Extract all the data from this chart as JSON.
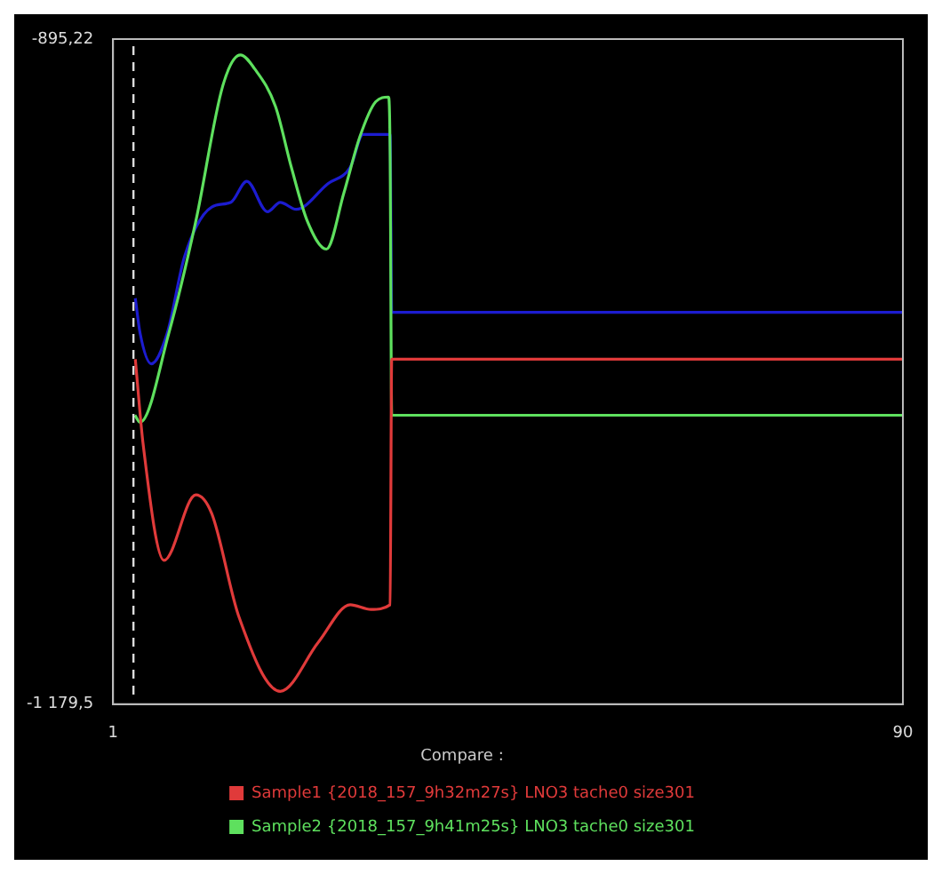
{
  "chart_data": {
    "type": "line",
    "legend_title": "Compare :",
    "legend": "bottom",
    "grid": false,
    "marker": "none",
    "line_style": "solid",
    "xlim": [
      1,
      90
    ],
    "xticks": [
      1,
      90
    ],
    "ylim": [
      -1179.5,
      -895.22
    ],
    "yticks": [
      {
        "value": -895.22,
        "label": "-895,22"
      },
      {
        "value": -1179.5,
        "label": "-1 179,5"
      }
    ],
    "ref_lines": [
      {
        "axis": "x",
        "value": 3.3,
        "color": "#dddddd",
        "line_style": "dashed"
      }
    ],
    "series": [
      {
        "name": "Sample1 {2018_157_9h32m27s} LNO3 tache0 size301",
        "color": "#e03a3a",
        "x": [
          3.51,
          4.41,
          6.74,
          10.33,
          12.12,
          15.17,
          19.84,
          24.14,
          27.73,
          30.06,
          32.22,
          32.4,
          90
        ],
        "values": [
          -1032,
          -1069,
          -1118,
          -1090,
          -1098,
          -1142,
          -1174,
          -1153,
          -1137,
          -1139,
          -1137,
          -1032,
          -1032
        ]
      },
      {
        "name": "Sample2 {2018_157_9h41m25s} LNO3 tache0 size301",
        "color": "#5ee05e",
        "x": [
          3.46,
          4.05,
          7.28,
          10.33,
          13.38,
          15.35,
          16.97,
          19.3,
          21.09,
          22.89,
          25.04,
          27.01,
          28.81,
          30.6,
          32.04,
          32.22,
          32.4,
          90
        ],
        "values": [
          -1056,
          -1059,
          -1021,
          -973,
          -915,
          -902,
          -908,
          -924,
          -950,
          -973,
          -985,
          -961,
          -937,
          -922,
          -920,
          -944,
          -1056,
          -1056
        ]
      },
      {
        "color": "#1c1cd0",
        "x": [
          3.51,
          4.05,
          5.31,
          7.1,
          9.07,
          12.12,
          14.28,
          16.07,
          18.4,
          19.84,
          21.63,
          25.22,
          27.73,
          29.17,
          32.22,
          32.4,
          90
        ],
        "values": [
          -1006,
          -1021,
          -1034,
          -1021,
          -988,
          -967,
          -965,
          -956,
          -969,
          -965,
          -968,
          -957,
          -950,
          -936,
          -936,
          -1012,
          -1012
        ]
      }
    ]
  }
}
